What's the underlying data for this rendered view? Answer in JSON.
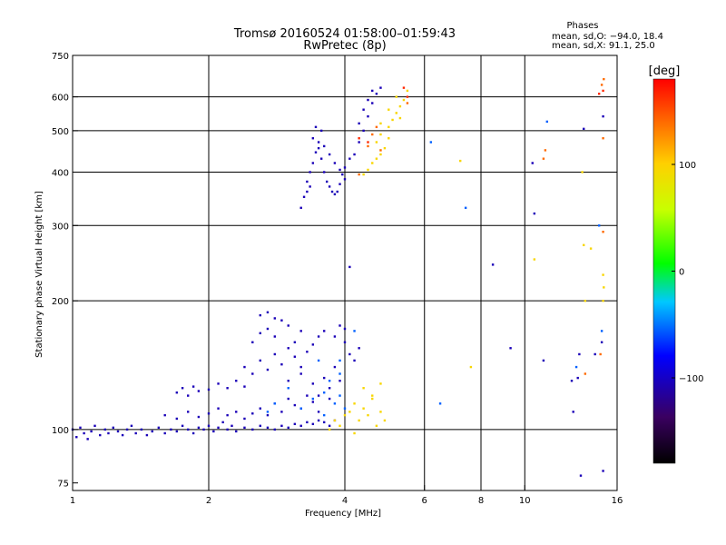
{
  "chart_data": {
    "type": "scatter",
    "title": "Tromsø 20160524 01:58:00–01:59:43",
    "subtitle": "RwPretec (8p)",
    "xlabel": "Frequency [MHz]",
    "ylabel": "Stationary phase Virtual Height [km]",
    "x_scale": "log",
    "y_scale": "log",
    "xlim": [
      1,
      16
    ],
    "ylim": [
      72,
      750
    ],
    "x_ticks": [
      "1",
      "2",
      "4",
      "6",
      "8",
      "10",
      "16"
    ],
    "x_tick_values": [
      1,
      2,
      4,
      6,
      8,
      10,
      16
    ],
    "x_grid": [
      2,
      4,
      6,
      8,
      10
    ],
    "y_ticks": [
      "75",
      "100",
      "200",
      "300",
      "400",
      "500",
      "600",
      "750"
    ],
    "y_tick_values": [
      75,
      100,
      200,
      300,
      400,
      500,
      600,
      750
    ],
    "y_grid": [
      100,
      200,
      300,
      400,
      500,
      600
    ],
    "grid": true,
    "phases_header": "Phases",
    "phase_stats": [
      "mean, sd,O: −94.0, 18.4",
      "mean, sd,X:  91.1, 25.0"
    ],
    "colorbar": {
      "unit": "[deg]",
      "range": [
        -180,
        180
      ],
      "ticks": [
        "100",
        "0",
        "−100"
      ],
      "tick_values": [
        100,
        0,
        -100
      ]
    },
    "series": [
      {
        "points": [
          [
            1.0,
            100
          ],
          [
            1.02,
            96
          ],
          [
            1.04,
            101
          ],
          [
            1.06,
            98
          ],
          [
            1.08,
            95
          ],
          [
            1.1,
            99
          ],
          [
            1.12,
            102
          ],
          [
            1.15,
            97
          ],
          [
            1.18,
            100
          ],
          [
            1.2,
            98
          ],
          [
            1.23,
            101
          ],
          [
            1.26,
            99
          ],
          [
            1.29,
            97
          ],
          [
            1.32,
            100
          ],
          [
            1.35,
            102
          ],
          [
            1.38,
            98
          ],
          [
            1.42,
            100
          ],
          [
            1.46,
            97
          ],
          [
            1.5,
            99
          ],
          [
            1.55,
            101
          ],
          [
            1.6,
            98
          ],
          [
            1.65,
            100
          ],
          [
            1.7,
            99
          ],
          [
            1.75,
            102
          ],
          [
            1.8,
            100
          ],
          [
            1.85,
            98
          ],
          [
            1.9,
            101
          ],
          [
            1.95,
            100
          ],
          [
            2.0,
            102
          ],
          [
            2.05,
            99
          ],
          [
            2.1,
            101
          ],
          [
            2.15,
            104
          ],
          [
            2.2,
            100
          ],
          [
            2.25,
            102
          ],
          [
            2.3,
            99
          ],
          [
            2.4,
            101
          ],
          [
            2.5,
            100
          ],
          [
            2.6,
            102
          ],
          [
            2.7,
            101
          ],
          [
            2.8,
            100
          ],
          [
            2.9,
            102
          ],
          [
            3.0,
            101
          ],
          [
            3.1,
            103
          ],
          [
            3.2,
            102
          ],
          [
            3.3,
            104
          ],
          [
            3.4,
            103
          ],
          [
            3.5,
            105
          ],
          [
            3.6,
            104
          ],
          [
            3.7,
            102
          ],
          [
            3.8,
            105
          ],
          [
            1.6,
            108
          ],
          [
            1.7,
            106
          ],
          [
            1.8,
            110
          ],
          [
            1.9,
            107
          ],
          [
            2.0,
            109
          ],
          [
            2.1,
            112
          ],
          [
            2.2,
            108
          ],
          [
            2.3,
            110
          ],
          [
            2.4,
            106
          ],
          [
            2.5,
            109
          ],
          [
            2.6,
            112
          ],
          [
            2.7,
            108
          ],
          [
            2.8,
            115
          ],
          [
            2.9,
            110
          ],
          [
            3.0,
            118
          ],
          [
            3.1,
            114
          ],
          [
            3.2,
            112
          ],
          [
            3.3,
            120
          ],
          [
            3.4,
            116
          ],
          [
            3.5,
            110
          ],
          [
            1.7,
            122
          ],
          [
            1.75,
            125
          ],
          [
            1.8,
            120
          ],
          [
            1.85,
            126
          ],
          [
            1.9,
            123
          ],
          [
            2.0,
            124
          ],
          [
            2.1,
            128
          ],
          [
            2.2,
            125
          ],
          [
            2.3,
            130
          ],
          [
            2.4,
            126
          ],
          [
            2.4,
            140
          ],
          [
            2.5,
            135
          ],
          [
            2.6,
            145
          ],
          [
            2.7,
            138
          ],
          [
            2.8,
            150
          ],
          [
            2.9,
            142
          ],
          [
            3.0,
            155
          ],
          [
            3.1,
            148
          ],
          [
            3.2,
            140
          ],
          [
            3.3,
            152
          ],
          [
            2.5,
            160
          ],
          [
            2.6,
            168
          ],
          [
            2.7,
            172
          ],
          [
            2.8,
            165
          ],
          [
            2.9,
            180
          ],
          [
            3.0,
            175
          ],
          [
            3.1,
            160
          ],
          [
            3.2,
            170
          ],
          [
            3.4,
            158
          ],
          [
            3.5,
            165
          ],
          [
            2.6,
            185
          ],
          [
            2.7,
            188
          ],
          [
            2.8,
            182
          ],
          [
            3.0,
            130
          ],
          [
            3.2,
            135
          ],
          [
            3.4,
            128
          ],
          [
            3.6,
            132
          ],
          [
            3.7,
            125
          ],
          [
            3.8,
            140
          ],
          [
            3.9,
            130
          ],
          [
            3.6,
            170
          ],
          [
            3.8,
            165
          ],
          [
            4.0,
            160
          ],
          [
            4.1,
            150
          ],
          [
            4.2,
            145
          ],
          [
            3.9,
            175
          ],
          [
            4.0,
            172
          ],
          [
            4.3,
            155
          ],
          [
            3.5,
            120
          ],
          [
            3.7,
            118
          ],
          [
            3.3,
            380
          ],
          [
            3.35,
            400
          ],
          [
            3.4,
            420
          ],
          [
            3.45,
            445
          ],
          [
            3.5,
            470
          ],
          [
            3.55,
            500
          ],
          [
            3.4,
            480
          ],
          [
            3.45,
            510
          ],
          [
            3.5,
            455
          ],
          [
            3.55,
            430
          ],
          [
            3.6,
            400
          ],
          [
            3.65,
            380
          ],
          [
            3.7,
            370
          ],
          [
            3.75,
            360
          ],
          [
            3.8,
            355
          ],
          [
            3.85,
            360
          ],
          [
            3.9,
            375
          ],
          [
            3.95,
            395
          ],
          [
            4.0,
            410
          ],
          [
            4.1,
            430
          ],
          [
            3.2,
            330
          ],
          [
            3.25,
            350
          ],
          [
            3.3,
            360
          ],
          [
            3.35,
            370
          ],
          [
            3.6,
            460
          ],
          [
            3.7,
            440
          ],
          [
            3.8,
            420
          ],
          [
            3.9,
            405
          ],
          [
            4.0,
            385
          ],
          [
            4.2,
            440
          ],
          [
            4.3,
            470
          ],
          [
            4.4,
            500
          ],
          [
            4.5,
            540
          ],
          [
            4.6,
            580
          ],
          [
            4.7,
            610
          ],
          [
            4.8,
            630
          ],
          [
            4.4,
            560
          ],
          [
            4.5,
            590
          ],
          [
            4.6,
            620
          ],
          [
            4.3,
            520
          ],
          [
            4.1,
            240
          ],
          [
            8.5,
            243
          ],
          [
            10.5,
            320
          ],
          [
            10.4,
            420
          ],
          [
            13.5,
            505
          ],
          [
            14.9,
            540
          ],
          [
            14.9,
            80
          ],
          [
            13.3,
            78
          ],
          [
            13.2,
            150
          ],
          [
            14.8,
            160
          ],
          [
            11.0,
            145
          ],
          [
            9.3,
            155
          ],
          [
            12.7,
            130
          ],
          [
            12.8,
            110
          ],
          [
            13.1,
            132
          ],
          [
            14.3,
            150
          ]
        ]
      },
      {
        "points": [
          [
            2.7,
            110
          ],
          [
            2.8,
            115
          ],
          [
            3.0,
            125
          ],
          [
            3.2,
            112
          ],
          [
            3.4,
            118
          ],
          [
            3.6,
            108
          ],
          [
            3.8,
            115
          ],
          [
            3.9,
            120
          ],
          [
            4.0,
            112
          ],
          [
            3.7,
            130
          ],
          [
            3.9,
            145
          ],
          [
            4.2,
            170
          ],
          [
            3.5,
            145
          ],
          [
            6.2,
            470
          ],
          [
            6.5,
            115
          ],
          [
            7.4,
            330
          ],
          [
            11.2,
            525
          ],
          [
            14.6,
            300
          ],
          [
            14.8,
            170
          ],
          [
            13.0,
            140
          ],
          [
            3.6,
            122
          ],
          [
            3.9,
            135
          ]
        ]
      },
      {
        "points": [
          [
            3.7,
            100
          ],
          [
            3.8,
            105
          ],
          [
            3.9,
            102
          ],
          [
            4.0,
            108
          ],
          [
            4.1,
            110
          ],
          [
            4.2,
            98
          ],
          [
            4.3,
            105
          ],
          [
            4.4,
            112
          ],
          [
            4.5,
            108
          ],
          [
            4.6,
            118
          ],
          [
            4.7,
            102
          ],
          [
            4.8,
            110
          ],
          [
            4.9,
            105
          ],
          [
            4.2,
            115
          ],
          [
            4.4,
            125
          ],
          [
            4.6,
            120
          ],
          [
            4.8,
            128
          ],
          [
            4.4,
            395
          ],
          [
            4.5,
            405
          ],
          [
            4.6,
            420
          ],
          [
            4.7,
            430
          ],
          [
            4.8,
            440
          ],
          [
            4.9,
            455
          ],
          [
            4.7,
            470
          ],
          [
            4.8,
            490
          ],
          [
            5.0,
            510
          ],
          [
            5.1,
            530
          ],
          [
            5.2,
            550
          ],
          [
            5.3,
            570
          ],
          [
            5.4,
            590
          ],
          [
            5.5,
            620
          ],
          [
            5.0,
            560
          ],
          [
            5.2,
            600
          ],
          [
            4.8,
            520
          ],
          [
            5.0,
            480
          ],
          [
            5.3,
            535
          ],
          [
            7.2,
            425
          ],
          [
            7.6,
            140
          ],
          [
            10.5,
            250
          ],
          [
            13.4,
            400
          ],
          [
            13.5,
            270
          ],
          [
            14.0,
            265
          ],
          [
            14.9,
            230
          ],
          [
            14.95,
            215
          ],
          [
            13.6,
            200
          ],
          [
            14.9,
            200
          ]
        ]
      },
      {
        "points": [
          [
            4.3,
            395
          ],
          [
            4.5,
            460
          ],
          [
            4.6,
            490
          ],
          [
            4.7,
            510
          ],
          [
            4.8,
            450
          ],
          [
            5.5,
            580
          ],
          [
            14.9,
            480
          ],
          [
            11.0,
            430
          ],
          [
            11.1,
            450
          ],
          [
            13.6,
            135
          ],
          [
            14.7,
            150
          ],
          [
            14.9,
            290
          ],
          [
            14.8,
            640
          ],
          [
            14.95,
            660
          ]
        ]
      },
      {
        "points": [
          [
            4.3,
            480
          ],
          [
            4.5,
            470
          ],
          [
            5.4,
            630
          ],
          [
            5.5,
            600
          ],
          [
            14.6,
            610
          ],
          [
            14.9,
            620
          ]
        ]
      }
    ],
    "series_phase_deg": [
      -105,
      -55,
      95,
      140,
      165
    ]
  }
}
